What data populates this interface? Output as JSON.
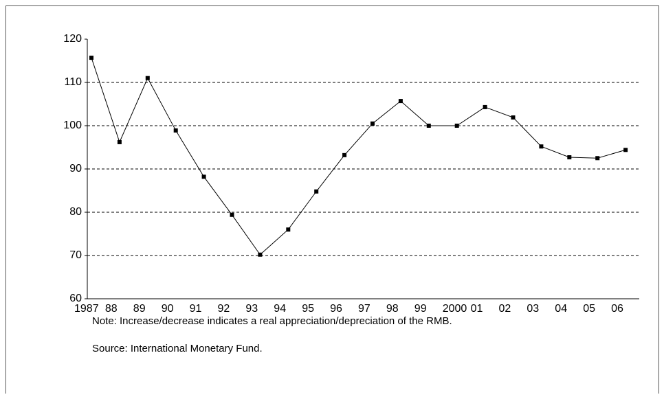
{
  "chart_data": {
    "type": "line",
    "categories": [
      "1987",
      "88",
      "89",
      "90",
      "91",
      "92",
      "93",
      "94",
      "95",
      "96",
      "97",
      "98",
      "99",
      "2000",
      "01",
      "02",
      "03",
      "04",
      "05",
      "06"
    ],
    "values": [
      115.7,
      96.2,
      111,
      98.9,
      88.2,
      79.4,
      70.2,
      76,
      84.8,
      93.2,
      100.5,
      105.7,
      100,
      100,
      104.3,
      101.9,
      95.2,
      92.7,
      92.5,
      94.4
    ],
    "color": "#000000",
    "ylim": [
      60,
      120
    ],
    "yticks": [
      60,
      70,
      80,
      90,
      100,
      110,
      120
    ],
    "grid": true,
    "annotations": [
      "Note: Increase/decrease indicates a real appreciation/depreciation of the RMB.",
      "Source: International Monetary Fund."
    ]
  }
}
